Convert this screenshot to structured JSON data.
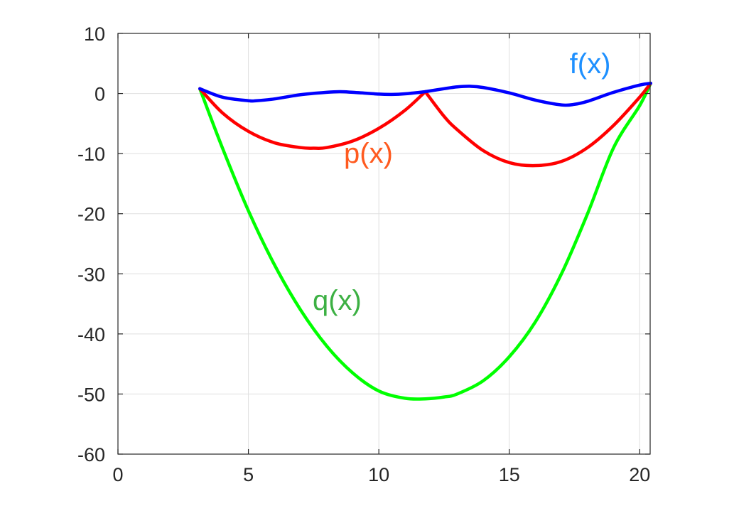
{
  "chart_data": {
    "type": "line",
    "title": "",
    "xlabel": "",
    "ylabel": "",
    "xlim": [
      0,
      20.4
    ],
    "ylim": [
      -60,
      10
    ],
    "grid": true,
    "x_ticks": [
      0,
      5,
      10,
      15,
      20
    ],
    "x_tick_labels": [
      "0",
      "5",
      "10",
      "15",
      "20"
    ],
    "y_ticks": [
      10,
      0,
      -10,
      -20,
      -30,
      -40,
      -50,
      -60
    ],
    "y_tick_labels": [
      "10",
      "0",
      "-10",
      "-20",
      "-30",
      "-40",
      "-50",
      "-60"
    ],
    "series": [
      {
        "name": "f(x)",
        "color": "#0000ff",
        "label_color": "#1e90ff",
        "label_anchor": [
          18.1,
          3.4
        ],
        "x": [
          3.14,
          4.0,
          5.0,
          5.3,
          6.0,
          7.0,
          8.0,
          8.5,
          9.0,
          10.0,
          10.5,
          11.0,
          11.78,
          12.5,
          13.0,
          13.5,
          14.0,
          15.0,
          16.0,
          17.0,
          17.5,
          18.0,
          19.0,
          20.0,
          20.42
        ],
        "y": [
          0.8,
          -0.6,
          -1.2,
          -1.2,
          -0.9,
          -0.2,
          0.2,
          0.3,
          0.2,
          -0.1,
          -0.15,
          -0.05,
          0.3,
          0.8,
          1.1,
          1.2,
          1.0,
          0.1,
          -1.1,
          -1.9,
          -1.8,
          -1.3,
          0.2,
          1.4,
          1.7
        ]
      },
      {
        "name": "p(x)",
        "color": "#ff0000",
        "label_color": "#ff5a1f",
        "label_anchor": [
          9.6,
          -11.5
        ],
        "x": [
          3.14,
          4.0,
          5.0,
          6.0,
          7.0,
          7.5,
          8.0,
          9.0,
          10.0,
          11.0,
          11.78,
          12.5,
          13.0,
          14.0,
          15.0,
          16.0,
          17.0,
          18.0,
          19.0,
          20.0,
          20.42
        ],
        "y": [
          0.8,
          -3.2,
          -6.3,
          -8.2,
          -9.0,
          -9.1,
          -9.0,
          -7.9,
          -5.8,
          -2.8,
          0.3,
          -3.8,
          -6.0,
          -9.5,
          -11.5,
          -12.0,
          -11.3,
          -9.0,
          -5.3,
          -0.6,
          1.7
        ]
      },
      {
        "name": "q(x)",
        "color": "#00ff00",
        "label_color": "#3cb043",
        "label_anchor": [
          8.4,
          -36.0
        ],
        "x": [
          3.14,
          4.0,
          5.0,
          6.0,
          7.0,
          8.0,
          9.0,
          10.0,
          11.0,
          11.78,
          12.5,
          13.0,
          14.0,
          15.0,
          16.0,
          17.0,
          18.0,
          19.0,
          20.0,
          20.42
        ],
        "y": [
          0.8,
          -9.0,
          -19.5,
          -28.5,
          -36.0,
          -42.0,
          -46.5,
          -49.5,
          -50.7,
          -50.8,
          -50.5,
          -50.0,
          -47.8,
          -43.8,
          -38.0,
          -30.0,
          -20.0,
          -9.0,
          -2.0,
          1.7
        ]
      }
    ]
  }
}
